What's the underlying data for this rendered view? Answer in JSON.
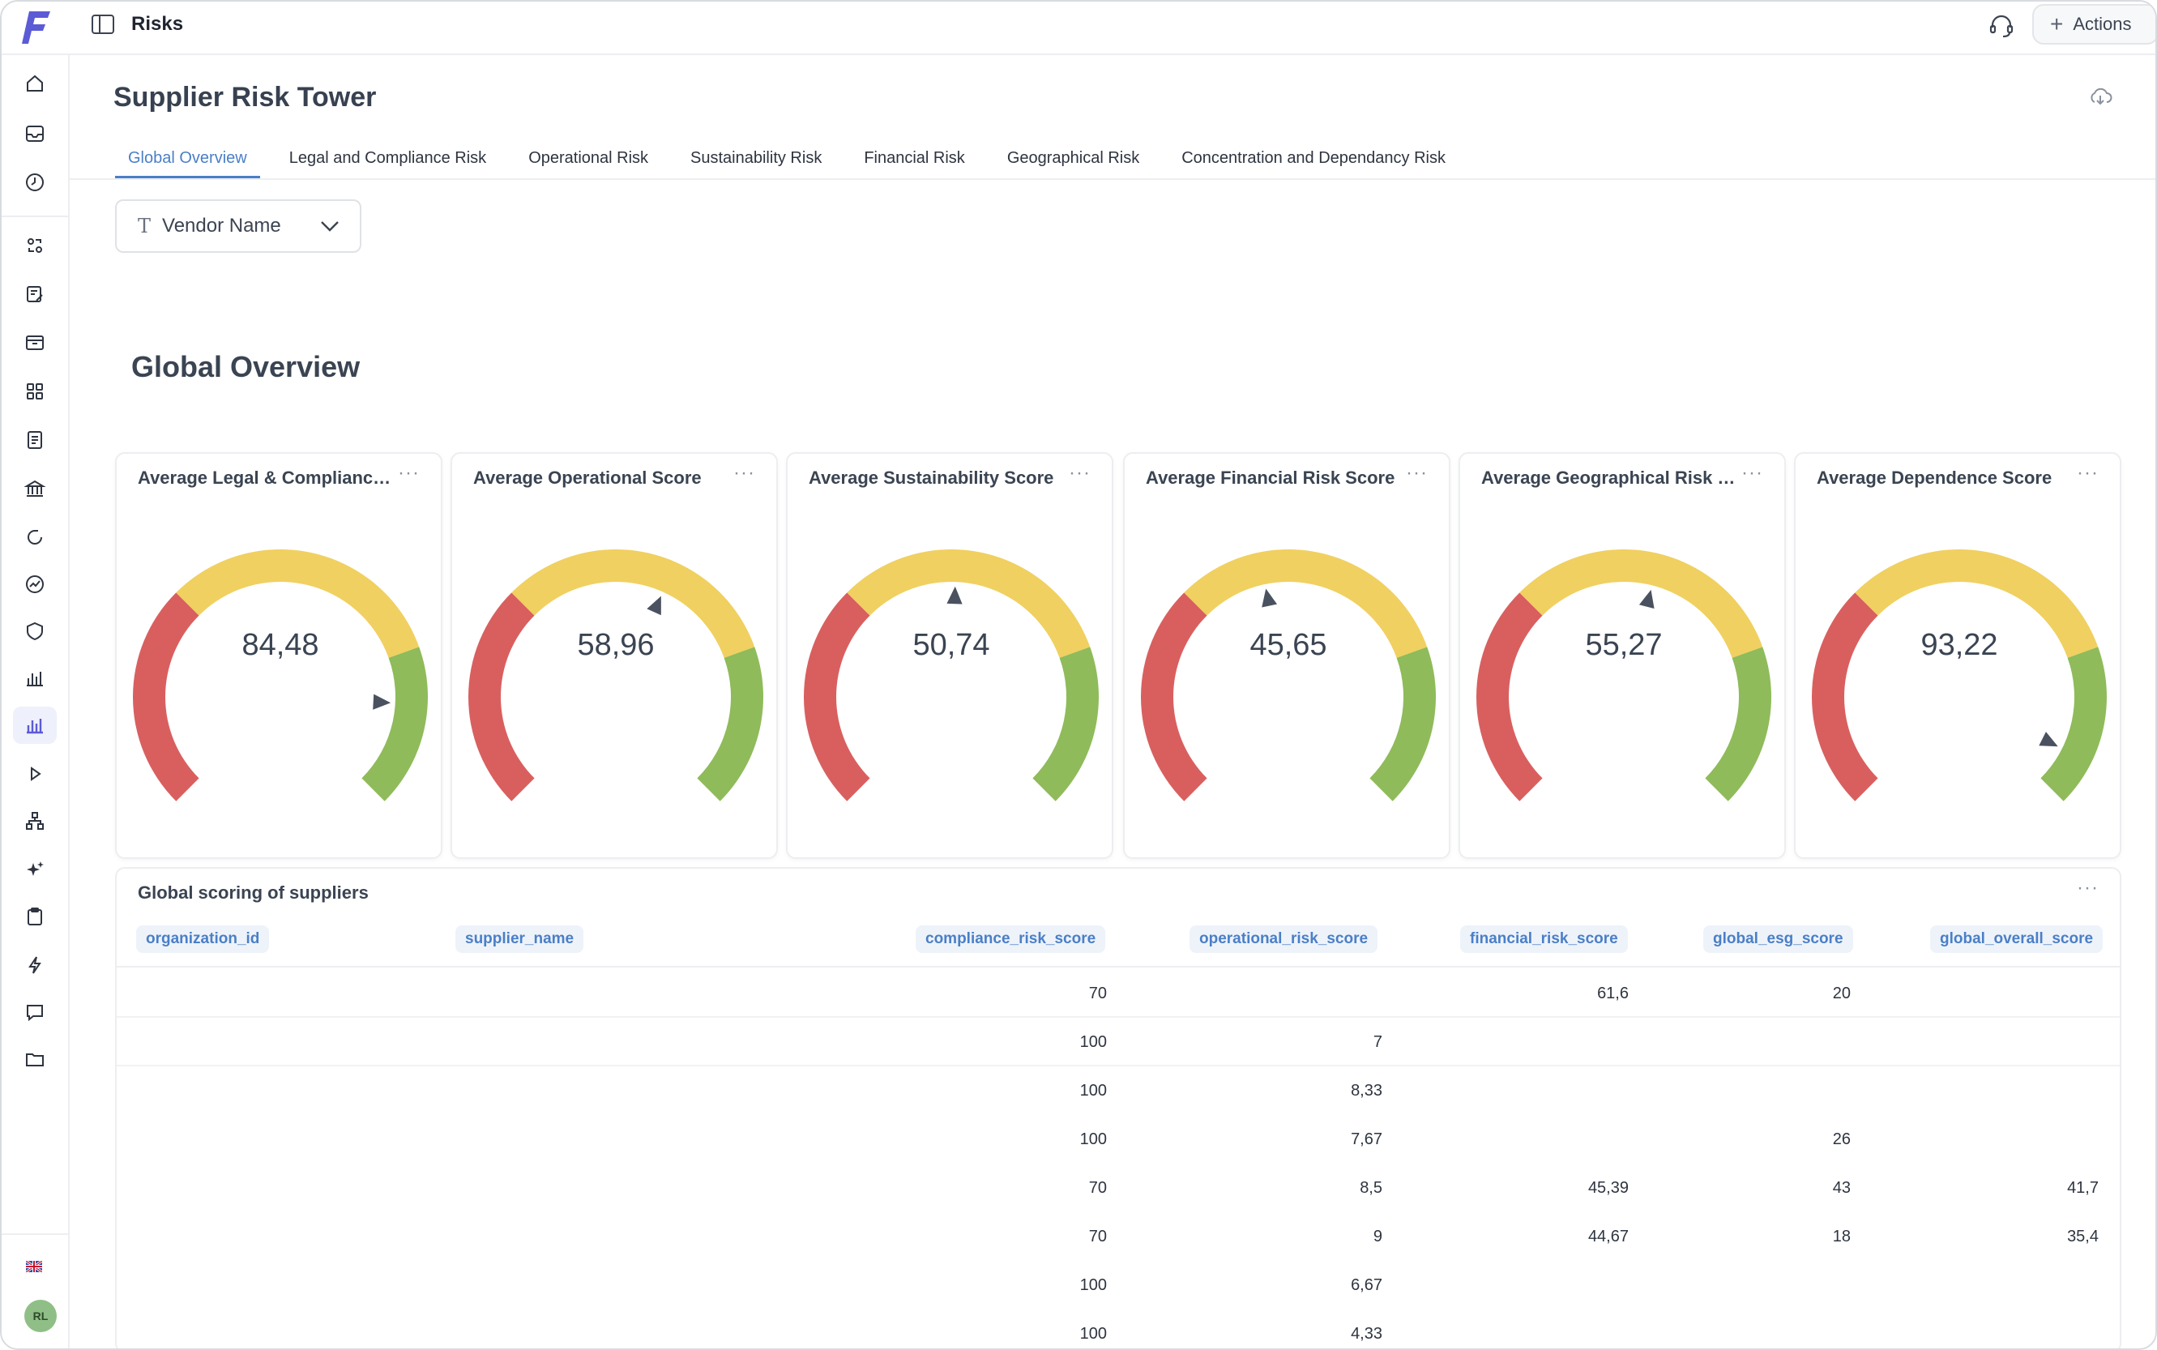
{
  "app": {
    "title": "Risks",
    "actions_label": "Actions"
  },
  "user": {
    "initials": "RL"
  },
  "page": {
    "title": "Supplier Risk Tower",
    "tabs": [
      {
        "label": "Global Overview",
        "active": true
      },
      {
        "label": "Legal and Compliance Risk",
        "active": false
      },
      {
        "label": "Operational Risk",
        "active": false
      },
      {
        "label": "Sustainability Risk",
        "active": false
      },
      {
        "label": "Financial Risk",
        "active": false
      },
      {
        "label": "Geographical Risk",
        "active": false
      },
      {
        "label": "Concentration and Dependancy Risk",
        "active": false
      }
    ],
    "filter": {
      "label": "Vendor Name",
      "type_icon": "T"
    },
    "section_title": "Global Overview"
  },
  "gauges": [
    {
      "title": "Average Legal & Compliance...",
      "value": 84.48,
      "display": "84,48"
    },
    {
      "title": "Average Operational Score",
      "value": 58.96,
      "display": "58,96"
    },
    {
      "title": "Average Sustainability Score",
      "value": 50.74,
      "display": "50,74"
    },
    {
      "title": "Average Financial Risk Score",
      "value": 45.65,
      "display": "45,65"
    },
    {
      "title": "Average Geographical Risk S...",
      "value": 55.27,
      "display": "55,27"
    },
    {
      "title": "Average Dependence Score",
      "value": 93.22,
      "display": "93,22"
    }
  ],
  "gauge_colors": {
    "low": "#d95f5f",
    "mid": "#f0d060",
    "high": "#8fbb5a",
    "needle": "#4a5260"
  },
  "table": {
    "title": "Global scoring of suppliers",
    "menu": "···",
    "columns": [
      "organization_id",
      "supplier_name",
      "compliance_risk_score",
      "operational_risk_score",
      "financial_risk_score",
      "global_esg_score",
      "global_overall_score"
    ],
    "rows": [
      [
        "",
        "",
        "70",
        "",
        "61,6",
        "20",
        ""
      ],
      [
        "",
        "",
        "100",
        "7",
        "",
        "",
        ""
      ],
      [
        "",
        "",
        "100",
        "8,33",
        "",
        "",
        ""
      ],
      [
        "",
        "",
        "100",
        "7,67",
        "",
        "26",
        ""
      ],
      [
        "",
        "",
        "70",
        "8,5",
        "45,39",
        "43",
        "41,7"
      ],
      [
        "",
        "",
        "70",
        "9",
        "44,67",
        "18",
        "35,4"
      ],
      [
        "",
        "",
        "100",
        "6,67",
        "",
        "",
        ""
      ],
      [
        "",
        "",
        "100",
        "4,33",
        "",
        "",
        ""
      ]
    ]
  },
  "card_menu": "···",
  "sidebar_icons": [
    "home-icon",
    "inbox-icon",
    "clock-icon",
    "exchange-icon",
    "edit-list-icon",
    "archive-icon",
    "grid-icon",
    "document-icon",
    "bank-icon",
    "refresh-icon",
    "trend-icon",
    "shield-icon",
    "bar-chart-icon",
    "analytics-icon",
    "play-icon",
    "hierarchy-icon",
    "sparkles-icon",
    "clipboard-icon",
    "lightning-icon",
    "message-icon",
    "folder-icon"
  ]
}
